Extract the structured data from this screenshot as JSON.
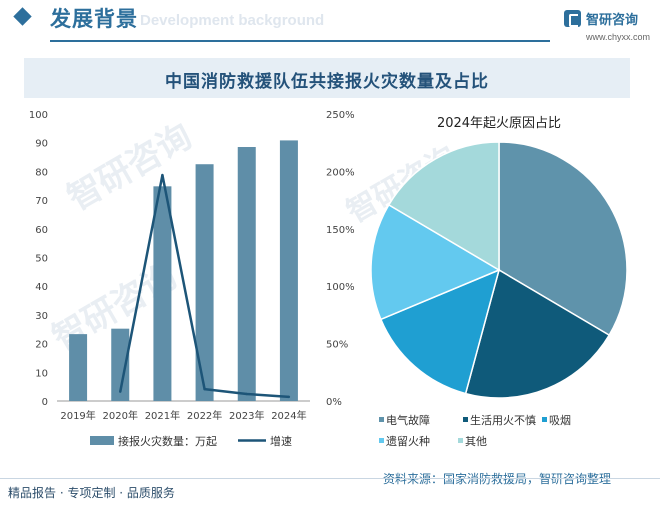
{
  "header": {
    "title": "发展背景",
    "ghost_title": "Development background",
    "logo_name": "智研咨询",
    "logo_site": "www.chyxx.com"
  },
  "main_title": "中国消防救援队伍共接报火灾数量及占比",
  "chart_data": [
    {
      "type": "bar",
      "categories": [
        "2019年",
        "2020年",
        "2021年",
        "2022年",
        "2023年",
        "2024年"
      ],
      "series": [
        {
          "name": "接报火灾数量：万起",
          "type": "bar",
          "axis": "left",
          "values": [
            23.3,
            25.2,
            74.8,
            82.5,
            88.5,
            90.8
          ],
          "color": "#5f8ea8"
        },
        {
          "name": "增速",
          "type": "line",
          "axis": "right",
          "values": [
            null,
            8.1,
            196.8,
            10.3,
            6.1,
            3.6
          ],
          "unit": "%",
          "color": "#1d5578"
        }
      ],
      "ylim_left": [
        0,
        100
      ],
      "yticks_left": [
        "0",
        "10",
        "20",
        "30",
        "40",
        "50",
        "60",
        "70",
        "80",
        "90",
        "100"
      ],
      "ylim_right": [
        0,
        250
      ],
      "yticks_right": [
        "0%",
        "50%",
        "100%",
        "150%",
        "200%",
        "250%"
      ],
      "legend_position": "bottom"
    },
    {
      "type": "pie",
      "title": "2024年起火原因占比",
      "labels": [
        "电气故障",
        "生活用火不慎",
        "吸烟",
        "遗留火种",
        "其他"
      ],
      "values": [
        33.5,
        20.7,
        14.5,
        14.8,
        16.5
      ],
      "colors": [
        "#5f93ab",
        "#0f5a7a",
        "#1f9fd2",
        "#63c9ef",
        "#a4d9db"
      ],
      "legend_position": "bottom-left"
    }
  ],
  "source": "资料来源：国家消防救援局，智研咨询整理",
  "footer": "精品报告 · 专项定制 · 品质服务",
  "watermark": "智研咨询",
  "colors": {
    "accent": "#2d6f9c",
    "title_bg": "#e6eef5"
  }
}
